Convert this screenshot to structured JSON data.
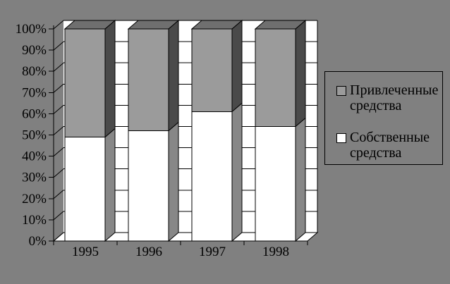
{
  "chart_data": {
    "type": "bar",
    "variant": "3d-100-percent-stacked-column",
    "title": "",
    "categories": [
      "1995",
      "1996",
      "1997",
      "1998"
    ],
    "series": [
      {
        "name": "Собственные средства",
        "values": [
          49,
          52,
          61,
          54
        ],
        "color": "#ffffff",
        "side_color": "#878787"
      },
      {
        "name": "Привлеченные средства",
        "values": [
          51,
          48,
          39,
          46
        ],
        "color": "#9b9b9b",
        "side_color": "#4a4a4a",
        "top_color": "#6f6f6f"
      }
    ],
    "y_axis": {
      "ticks": [
        "0%",
        "10%",
        "20%",
        "30%",
        "40%",
        "50%",
        "60%",
        "70%",
        "80%",
        "90%",
        "100%"
      ],
      "min": 0,
      "max": 100,
      "gridlines": true
    },
    "legend": {
      "position": "right",
      "entries": [
        {
          "label": "Привлеченные средства",
          "swatch_color": "#9b9b9b"
        },
        {
          "label": "Собственные средства",
          "swatch_color": "#ffffff"
        }
      ]
    },
    "colors": {
      "background": "#808080",
      "wall": "#ffffff",
      "outline": "#000000",
      "text": "#000000"
    }
  }
}
